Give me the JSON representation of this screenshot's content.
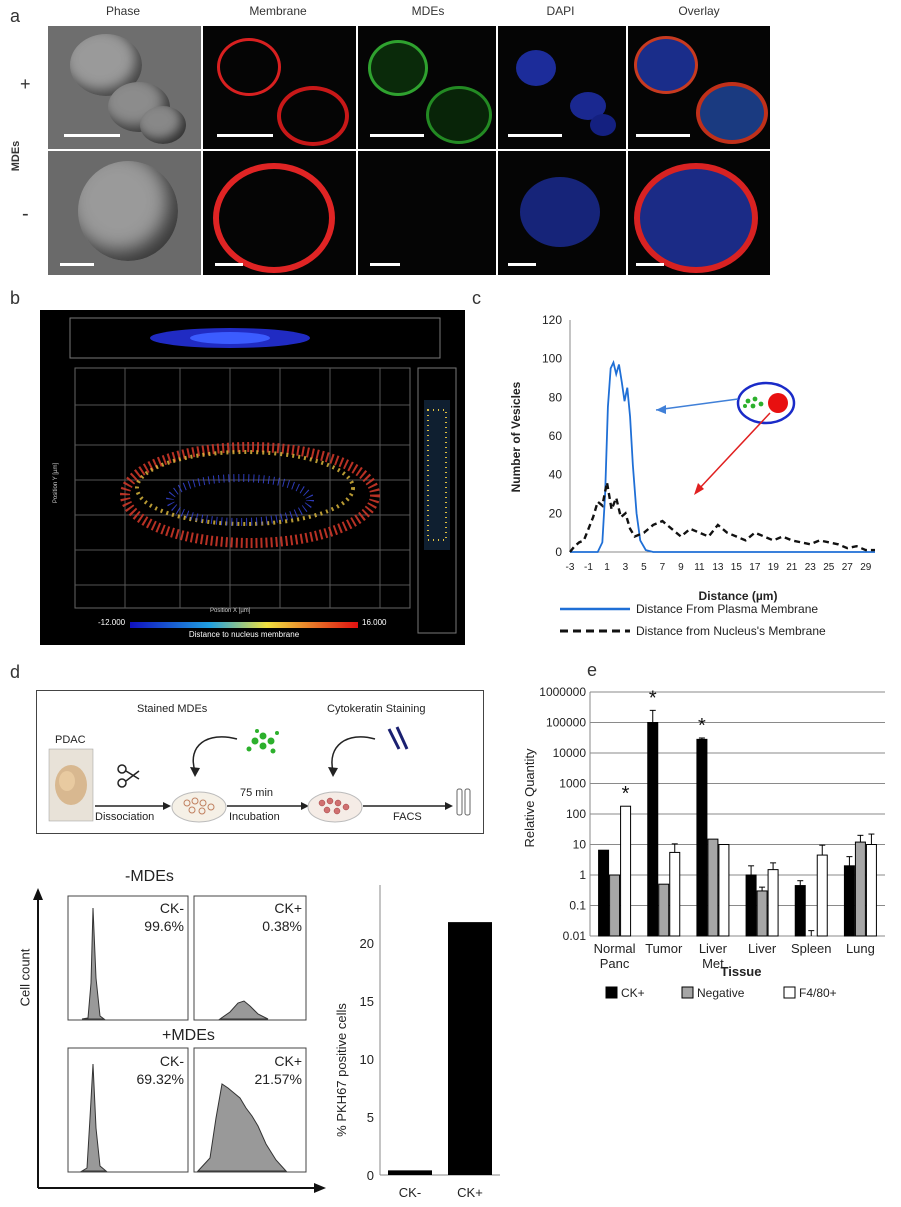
{
  "panels": {
    "a": "a",
    "b": "b",
    "c": "c",
    "d": "d",
    "e": "e"
  },
  "panel_a": {
    "columns": [
      "Phase",
      "Membrane",
      "MDEs",
      "DAPI",
      "Overlay"
    ],
    "row_plus": "+",
    "row_minus": "-",
    "group_label": "MDEs"
  },
  "panel_b": {
    "colorbar_min": "-12.000",
    "colorbar_max": "16.000",
    "colorbar_label": "Distance to nucleus membrane",
    "axis_x": "Position X [µm]",
    "axis_y": "Position Y [µm]"
  },
  "panel_d": {
    "pdac": "PDAC",
    "stained": "Stained MDEs",
    "cytokeratin": "Cytokeratin Staining",
    "dissociation": "Dissociation",
    "incubation_time": "75 min",
    "incubation": "Incubation",
    "facs": "FACS",
    "minus_mdes": "-MDEs",
    "plus_mdes": "+MDEs",
    "cell_count": "Cell count",
    "hist": [
      {
        "label": "CK-",
        "pct": "99.6%"
      },
      {
        "label": "CK+",
        "pct": "0.38%"
      },
      {
        "label": "CK-",
        "pct": "69.32%"
      },
      {
        "label": "CK+",
        "pct": "21.57%"
      }
    ]
  },
  "chart_data": [
    {
      "type": "line",
      "panel": "c",
      "xlabel": "Distance (µm)",
      "ylabel": "Number of Vesicles",
      "ylim": [
        0,
        120
      ],
      "xlim": [
        -3,
        30
      ],
      "yticks": [
        "0",
        "20",
        "40",
        "60",
        "80",
        "100",
        "120"
      ],
      "xticks": [
        "-3",
        "-1",
        "1",
        "3",
        "5",
        "7",
        "9",
        "11",
        "13",
        "15",
        "17",
        "19",
        "21",
        "23",
        "25",
        "27",
        "29"
      ],
      "series": [
        {
          "name": "Distance From Plasma Membrane",
          "color": "#1f6fd6",
          "style": "solid",
          "x": [
            -3,
            0,
            0.5,
            0.8,
            1.1,
            1.4,
            1.7,
            2.0,
            2.3,
            2.6,
            2.9,
            3.2,
            3.5,
            3.8,
            4.2,
            4.6,
            5.2,
            6,
            30
          ],
          "y": [
            0,
            0,
            5,
            30,
            75,
            95,
            98,
            92,
            97,
            88,
            78,
            85,
            70,
            45,
            20,
            6,
            1,
            0,
            0
          ]
        },
        {
          "name": "Distance from Nucleus's Membrane",
          "color": "#111111",
          "style": "dashed",
          "x": [
            -3,
            -2.5,
            -2,
            -1.5,
            -1,
            -0.5,
            0,
            0.5,
            1,
            1.5,
            2,
            2.5,
            3,
            3.5,
            4,
            5,
            6,
            7,
            8,
            9,
            10,
            11,
            12,
            13,
            14,
            15,
            16,
            17,
            18,
            19,
            20,
            21,
            22,
            23,
            24,
            25,
            26,
            27,
            28,
            29,
            30
          ],
          "y": [
            0,
            3,
            5,
            6,
            12,
            18,
            26,
            24,
            36,
            22,
            28,
            18,
            20,
            12,
            8,
            10,
            14,
            16,
            12,
            8,
            12,
            10,
            8,
            14,
            10,
            8,
            6,
            10,
            8,
            6,
            8,
            6,
            5,
            4,
            6,
            5,
            4,
            2,
            3,
            1,
            1
          ]
        }
      ]
    },
    {
      "type": "bar",
      "panel": "e",
      "scale": "log",
      "xlabel": "Tissue",
      "ylabel": "Relative Quantity",
      "ylim": [
        0.01,
        1000000
      ],
      "yticks": [
        "0.01",
        "0.1",
        "1",
        "10",
        "100",
        "1000",
        "10000",
        "100000",
        "1000000"
      ],
      "categories": [
        [
          "Normal",
          "Panc"
        ],
        [
          "Tumor"
        ],
        [
          "Liver",
          "Met"
        ],
        [
          "Liver"
        ],
        [
          "Spleen"
        ],
        [
          "Lung"
        ]
      ],
      "series": [
        {
          "name": "CK+",
          "color": "#000000",
          "values": [
            6.5,
            100000,
            28000,
            1.0,
            0.45,
            2.0
          ],
          "err": [
            0,
            150000,
            3000,
            1.0,
            0.2,
            2.0
          ]
        },
        {
          "name": "Negative",
          "color": "#a6a6a6",
          "values": [
            1.0,
            0.5,
            15,
            0.3,
            0.01,
            12
          ],
          "err": [
            0,
            0,
            0,
            0.1,
            0.005,
            8
          ]
        },
        {
          "name": "F4/80+",
          "color": "#ffffff",
          "values": [
            180,
            5.5,
            10,
            1.5,
            4.5,
            10
          ],
          "err": [
            0,
            5,
            0,
            1.0,
            5,
            12
          ]
        }
      ],
      "significance": [
        "*",
        "*",
        "*"
      ]
    },
    {
      "type": "bar",
      "panel": "d",
      "xlabel": "",
      "ylabel": "% PKH67 positive cells",
      "ylim": [
        0,
        25
      ],
      "yticks": [
        "0",
        "5",
        "10",
        "15",
        "20"
      ],
      "categories": [
        "CK-",
        "CK+"
      ],
      "values": [
        0.4,
        21.8
      ]
    }
  ]
}
